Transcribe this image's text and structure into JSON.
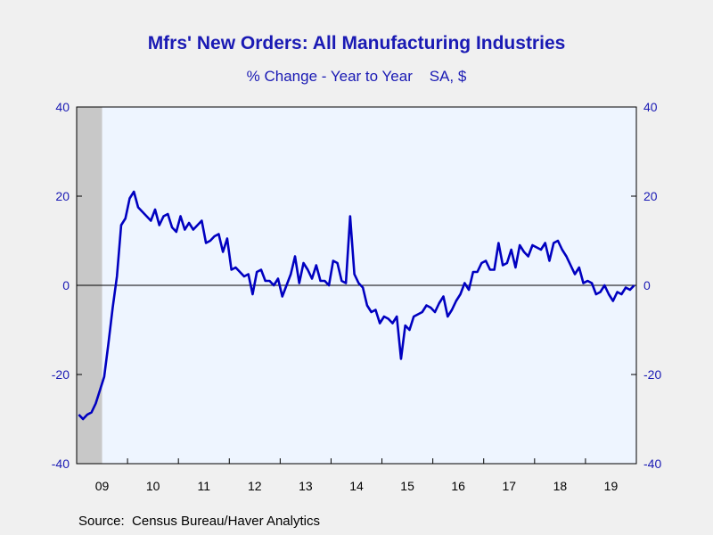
{
  "chart_data": {
    "type": "line",
    "title": "Mfrs' New Orders: All Manufacturing Industries",
    "subtitle": "% Change - Year to Year    SA, $",
    "source": "Source:  Census Bureau/Haver Analytics",
    "ylim": [
      -40,
      40
    ],
    "y_ticks": [
      -40,
      -20,
      0,
      20,
      40
    ],
    "y_tick_labels": [
      "-40",
      "-20",
      "0",
      "20",
      "40"
    ],
    "right_axis_tick_labels": [
      "-40",
      "-20",
      "0",
      "20",
      "40"
    ],
    "x_start": "2009-01",
    "x_end": "2019-12",
    "x_year_labels": [
      "09",
      "10",
      "11",
      "12",
      "13",
      "14",
      "15",
      "16",
      "17",
      "18",
      "19"
    ],
    "zero_line": true,
    "recession_shading": {
      "start": "2009-01",
      "end": "2009-06"
    },
    "colors": {
      "line": "#0000c0",
      "axis_text": "#1a1ab4",
      "plot_bg": "#eef5ff",
      "recession": "#c8c8c8"
    },
    "series": [
      {
        "x": [
          "2009-01",
          "2009-02",
          "2009-03",
          "2009-04",
          "2009-05",
          "2009-06",
          "2009-07",
          "2009-08",
          "2009-09",
          "2009-10",
          "2009-11",
          "2009-12",
          "2010-01",
          "2010-02",
          "2010-03",
          "2010-04",
          "2010-05",
          "2010-06",
          "2010-07",
          "2010-08",
          "2010-09",
          "2010-10",
          "2010-11",
          "2010-12",
          "2011-01",
          "2011-02",
          "2011-03",
          "2011-04",
          "2011-05",
          "2011-06",
          "2011-07",
          "2011-08",
          "2011-09",
          "2011-10",
          "2011-11",
          "2011-12",
          "2012-01",
          "2012-02",
          "2012-03",
          "2012-04",
          "2012-05",
          "2012-06",
          "2012-07",
          "2012-08",
          "2012-09",
          "2012-10",
          "2012-11",
          "2012-12",
          "2013-01",
          "2013-02",
          "2013-03",
          "2013-04",
          "2013-05",
          "2013-06",
          "2013-07",
          "2013-08",
          "2013-09",
          "2013-10",
          "2013-11",
          "2013-12",
          "2014-01",
          "2014-02",
          "2014-03",
          "2014-04",
          "2014-05",
          "2014-06",
          "2014-07",
          "2014-08",
          "2014-09",
          "2014-10",
          "2014-11",
          "2014-12",
          "2015-01",
          "2015-02",
          "2015-03",
          "2015-04",
          "2015-05",
          "2015-06",
          "2015-07",
          "2015-08",
          "2015-09",
          "2015-10",
          "2015-11",
          "2015-12",
          "2016-01",
          "2016-02",
          "2016-03",
          "2016-04",
          "2016-05",
          "2016-06",
          "2016-07",
          "2016-08",
          "2016-09",
          "2016-10",
          "2016-11",
          "2016-12",
          "2017-01",
          "2017-02",
          "2017-03",
          "2017-04",
          "2017-05",
          "2017-06",
          "2017-07",
          "2017-08",
          "2017-09",
          "2017-10",
          "2017-11",
          "2017-12",
          "2018-01",
          "2018-02",
          "2018-03",
          "2018-04",
          "2018-05",
          "2018-06",
          "2018-07",
          "2018-08",
          "2018-09",
          "2018-10",
          "2018-11",
          "2018-12",
          "2019-01",
          "2019-02",
          "2019-03",
          "2019-04",
          "2019-05",
          "2019-06",
          "2019-07",
          "2019-08",
          "2019-09",
          "2019-10",
          "2019-11",
          "2019-12"
        ],
        "values": [
          -29,
          -30,
          -29,
          -28.5,
          -26.5,
          -23.5,
          -20.5,
          -13,
          -5,
          2,
          13.5,
          15,
          19.5,
          21,
          17.5,
          16.5,
          15.5,
          14.5,
          17,
          13.5,
          15.5,
          16,
          13,
          12,
          15.5,
          12.5,
          14,
          12.5,
          13.5,
          14.5,
          9.5,
          10,
          11,
          11.5,
          7.5,
          10.5,
          3.5,
          4,
          3,
          2,
          2.5,
          -2,
          3,
          3.5,
          1,
          1,
          0,
          1.5,
          -2.5,
          0,
          2.5,
          6.5,
          0.5,
          5,
          3.5,
          1.5,
          4.5,
          1,
          1,
          0,
          5.5,
          5,
          1,
          0.5,
          15.5,
          2.5,
          0.5,
          -0.5,
          -4.5,
          -6,
          -5.5,
          -8.5,
          -7,
          -7.5,
          -8.5,
          -7,
          -16.5,
          -9,
          -10,
          -7,
          -6.5,
          -6,
          -4.5,
          -5,
          -6,
          -4,
          -2.5,
          -7,
          -5.5,
          -3.5,
          -2,
          0.5,
          -1,
          3,
          3,
          5,
          5.5,
          3.5,
          3.5,
          9.5,
          4.5,
          5,
          8,
          4,
          9,
          7.5,
          6.5,
          9,
          8.5,
          8,
          9.5,
          5.5,
          9.5,
          10,
          8,
          6.5,
          4.5,
          2.5,
          4,
          0.5,
          1,
          0.5,
          -2,
          -1.5,
          0,
          -2,
          -3.5,
          -1.5,
          -2,
          -0.5,
          -1,
          0
        ]
      }
    ]
  }
}
